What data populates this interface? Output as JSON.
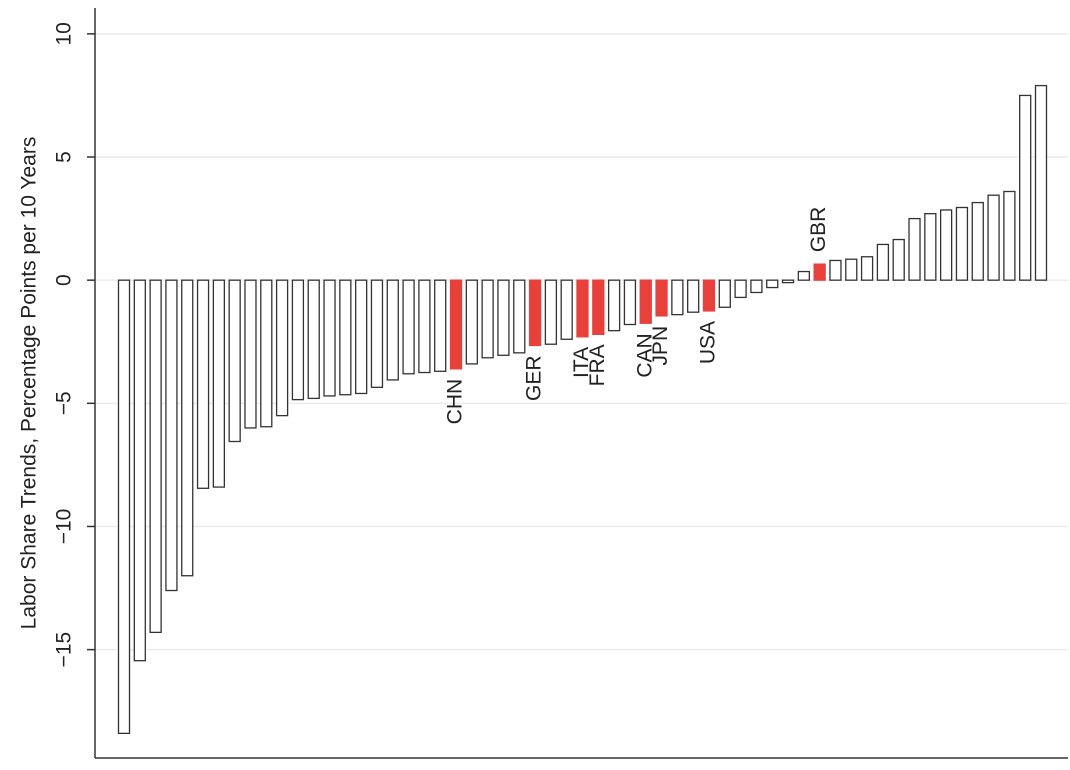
{
  "chart_data": {
    "type": "bar",
    "y_label": "Labor Share Trends, Percentage Points per 10 Years",
    "categories": [
      null,
      null,
      null,
      null,
      null,
      null,
      null,
      null,
      null,
      null,
      null,
      null,
      null,
      null,
      null,
      null,
      null,
      null,
      null,
      null,
      null,
      "CHN",
      null,
      null,
      null,
      null,
      "GER",
      null,
      null,
      "ITA",
      "FRA",
      null,
      null,
      "CAN",
      "JPN",
      null,
      null,
      "USA",
      null,
      null,
      null,
      null,
      null,
      null,
      "GBR",
      null,
      null,
      null,
      null,
      null,
      null,
      null,
      null,
      null,
      null,
      null,
      null,
      null,
      null
    ],
    "values": [
      -18.4,
      -15.45,
      -14.3,
      -12.6,
      -12.0,
      -8.45,
      -8.4,
      -6.55,
      -6.0,
      -5.95,
      -5.5,
      -4.85,
      -4.8,
      -4.7,
      -4.65,
      -4.6,
      -4.35,
      -4.05,
      -3.8,
      -3.75,
      -3.7,
      -3.6,
      -3.4,
      -3.15,
      -3.05,
      -2.95,
      -2.65,
      -2.6,
      -2.4,
      -2.3,
      -2.2,
      -2.05,
      -1.8,
      -1.75,
      -1.45,
      -1.4,
      -1.3,
      -1.25,
      -1.1,
      -0.7,
      -0.5,
      -0.3,
      -0.1,
      0.35,
      0.65,
      0.8,
      0.85,
      0.95,
      1.45,
      1.65,
      2.5,
      2.7,
      2.85,
      2.95,
      3.15,
      3.45,
      3.6,
      7.5,
      7.9
    ],
    "color": "#ffffff",
    "edge_color": "#333333",
    "highlight_color": "#e8413c",
    "ylim": [
      -19.4,
      11.05
    ],
    "yticks": [
      {
        "value": -15,
        "label": "−15"
      },
      {
        "value": -10,
        "label": "−10"
      },
      {
        "value": -5,
        "label": "−5"
      },
      0,
      5,
      10
    ],
    "grid": true
  }
}
